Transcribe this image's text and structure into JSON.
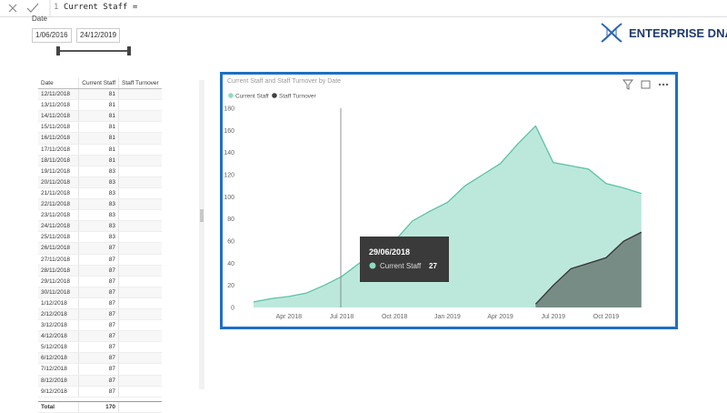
{
  "formula_bar": {
    "line_number": "1",
    "text": "Current Staff ="
  },
  "slicer": {
    "label": "Date",
    "start": "1/06/2016",
    "end": "24/12/2019"
  },
  "logo": "ENTERPRISE DNA",
  "table": {
    "columns": [
      "Date",
      "Current Staff",
      "Staff Turnover"
    ],
    "rows": [
      [
        "12/11/2018",
        81
      ],
      [
        "13/11/2018",
        81
      ],
      [
        "14/11/2018",
        81
      ],
      [
        "15/11/2018",
        81
      ],
      [
        "16/11/2018",
        81
      ],
      [
        "17/11/2018",
        81
      ],
      [
        "18/11/2018",
        81
      ],
      [
        "19/11/2018",
        83
      ],
      [
        "20/11/2018",
        83
      ],
      [
        "21/11/2018",
        83
      ],
      [
        "22/11/2018",
        83
      ],
      [
        "23/11/2018",
        83
      ],
      [
        "24/11/2018",
        83
      ],
      [
        "25/11/2018",
        83
      ],
      [
        "26/11/2018",
        87
      ],
      [
        "27/11/2018",
        87
      ],
      [
        "28/11/2018",
        87
      ],
      [
        "29/11/2018",
        87
      ],
      [
        "30/11/2018",
        87
      ],
      [
        "1/12/2018",
        87
      ],
      [
        "2/12/2018",
        87
      ],
      [
        "3/12/2018",
        87
      ],
      [
        "4/12/2018",
        87
      ],
      [
        "5/12/2018",
        87
      ],
      [
        "6/12/2018",
        87
      ],
      [
        "7/12/2018",
        87
      ],
      [
        "8/12/2018",
        87
      ],
      [
        "9/12/2018",
        87
      ]
    ],
    "total": [
      "Total",
      170
    ]
  },
  "chart_data": {
    "type": "area",
    "title": "Current Staff and Staff Turnover by Date",
    "x": [
      "2018-02",
      "2018-03",
      "2018-04",
      "2018-05",
      "2018-06",
      "2018-07",
      "2018-08",
      "2018-09",
      "2018-10",
      "2018-11",
      "2018-12",
      "2019-01",
      "2019-02",
      "2019-03",
      "2019-04",
      "2019-05",
      "2019-06",
      "2019-07",
      "2019-08",
      "2019-09",
      "2019-10",
      "2019-11",
      "2019-12"
    ],
    "series": [
      {
        "name": "Current Staff",
        "color": "#8fd9c4",
        "values": [
          5,
          8,
          10,
          13,
          20,
          28,
          40,
          50,
          60,
          78,
          87,
          95,
          110,
          120,
          130,
          148,
          164,
          131,
          128,
          125,
          112,
          108,
          103
        ]
      },
      {
        "name": "Staff Turnover",
        "color": "#404040",
        "values": [
          null,
          null,
          null,
          null,
          null,
          null,
          null,
          null,
          null,
          null,
          null,
          null,
          null,
          null,
          null,
          null,
          3,
          20,
          35,
          40,
          45,
          60,
          68
        ]
      }
    ],
    "xticks": [
      {
        "value": "2018-04",
        "label": "Apr 2018"
      },
      {
        "value": "2018-07",
        "label": "Jul 2018"
      },
      {
        "value": "2018-10",
        "label": "Oct 2018"
      },
      {
        "value": "2019-01",
        "label": "Jan 2019"
      },
      {
        "value": "2019-04",
        "label": "Apr 2019"
      },
      {
        "value": "2019-07",
        "label": "Jul 2019"
      },
      {
        "value": "2019-10",
        "label": "Oct 2019"
      }
    ],
    "ylim": [
      0,
      180
    ],
    "yticks": [
      0,
      20,
      40,
      60,
      80,
      100,
      120,
      140,
      160,
      180
    ],
    "grid": false,
    "tooltip": {
      "date": "29/06/2018",
      "series": "Current Staff",
      "value": 27
    }
  }
}
